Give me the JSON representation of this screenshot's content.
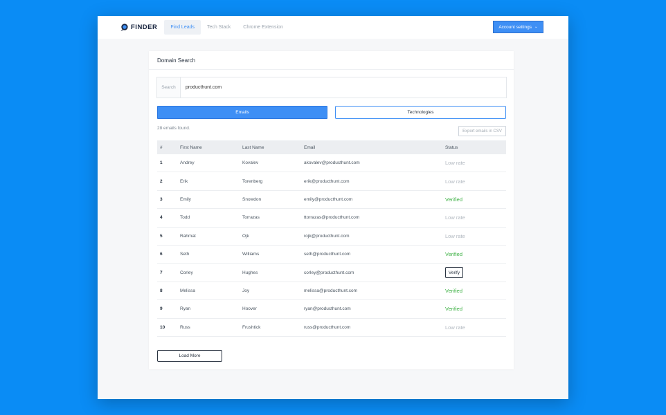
{
  "app": {
    "logo_text": "FINDER",
    "nav": [
      "Find Leads",
      "Tech Stack",
      "Chrome Extension"
    ],
    "account_label": "Account settings",
    "colors": {
      "background": "#0a8cf5",
      "accent": "#3e8ff5",
      "verified": "#3cb043",
      "low_rate": "#b0b7bf"
    }
  },
  "panel": {
    "title": "Domain Search",
    "search_label": "Search",
    "search_value": "producthunt.com",
    "btn_emails": "Emails",
    "btn_tech": "Technologies",
    "found_text": "28 emails found.",
    "export_label": "Export emails in CSV",
    "load_more": "Load More"
  },
  "table": {
    "headers": [
      "#",
      "First Name",
      "Last Name",
      "Email",
      "Status"
    ],
    "rows": [
      {
        "num": "1",
        "first": "Andrey",
        "last": "Kovalev",
        "email": "akovalev@producthunt.com",
        "status": "Low rate"
      },
      {
        "num": "2",
        "first": "Erik",
        "last": "Torenberg",
        "email": "erik@producthunt.com",
        "status": "Low rate"
      },
      {
        "num": "3",
        "first": "Emily",
        "last": "Snowdon",
        "email": "emily@producthunt.com",
        "status": "Verified"
      },
      {
        "num": "4",
        "first": "Todd",
        "last": "Torrazas",
        "email": "ttorrazas@producthunt.com",
        "status": "Low rate"
      },
      {
        "num": "5",
        "first": "Rahmat",
        "last": "Ojk",
        "email": "rojk@producthunt.com",
        "status": "Low rate"
      },
      {
        "num": "6",
        "first": "Seth",
        "last": "Williams",
        "email": "seth@producthunt.com",
        "status": "Verified"
      },
      {
        "num": "7",
        "first": "Corley",
        "last": "Hughes",
        "email": "corley@producthunt.com",
        "status": "Verify"
      },
      {
        "num": "8",
        "first": "Melissa",
        "last": "Joy",
        "email": "melissa@producthunt.com",
        "status": "Verified"
      },
      {
        "num": "9",
        "first": "Ryan",
        "last": "Hoover",
        "email": "ryan@producthunt.com",
        "status": "Verified"
      },
      {
        "num": "10",
        "first": "Russ",
        "last": "Frushtick",
        "email": "russ@producthunt.com",
        "status": "Low rate"
      }
    ]
  }
}
